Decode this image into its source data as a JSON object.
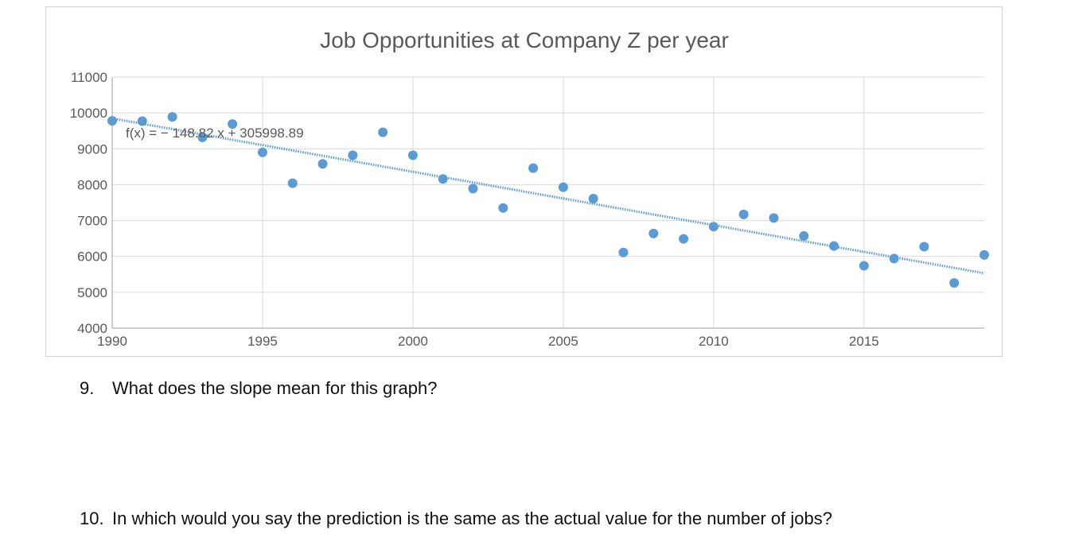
{
  "chart_data": {
    "type": "scatter",
    "title": "Job Opportunities at Company Z per year",
    "xlabel": "",
    "ylabel": "",
    "xlim": [
      1990,
      2019
    ],
    "ylim": [
      4000,
      11000
    ],
    "x_ticks": [
      1990,
      1995,
      2000,
      2005,
      2010,
      2015
    ],
    "y_ticks": [
      4000,
      5000,
      6000,
      7000,
      8000,
      9000,
      10000,
      11000
    ],
    "grid": true,
    "points": [
      {
        "x": 1990,
        "y": 9780
      },
      {
        "x": 1991,
        "y": 9770
      },
      {
        "x": 1992,
        "y": 9890
      },
      {
        "x": 1993,
        "y": 9320
      },
      {
        "x": 1994,
        "y": 9690
      },
      {
        "x": 1995,
        "y": 8900
      },
      {
        "x": 1996,
        "y": 8040
      },
      {
        "x": 1997,
        "y": 8580
      },
      {
        "x": 1998,
        "y": 8820
      },
      {
        "x": 1999,
        "y": 9460
      },
      {
        "x": 2000,
        "y": 8820
      },
      {
        "x": 2001,
        "y": 8160
      },
      {
        "x": 2002,
        "y": 7890
      },
      {
        "x": 2003,
        "y": 7350
      },
      {
        "x": 2004,
        "y": 8460
      },
      {
        "x": 2005,
        "y": 7930
      },
      {
        "x": 2006,
        "y": 7610
      },
      {
        "x": 2007,
        "y": 6110
      },
      {
        "x": 2008,
        "y": 6640
      },
      {
        "x": 2009,
        "y": 6490
      },
      {
        "x": 2010,
        "y": 6830
      },
      {
        "x": 2011,
        "y": 7170
      },
      {
        "x": 2012,
        "y": 7070
      },
      {
        "x": 2013,
        "y": 6570
      },
      {
        "x": 2014,
        "y": 6290
      },
      {
        "x": 2015,
        "y": 5740
      },
      {
        "x": 2016,
        "y": 5940
      },
      {
        "x": 2017,
        "y": 6270
      },
      {
        "x": 2018,
        "y": 5260
      },
      {
        "x": 2019,
        "y": 6040
      }
    ],
    "trendline": {
      "slope": -148.82,
      "intercept": 305998.89,
      "equation": "f(x) = − 148.82 x + 305998.89"
    },
    "colors": {
      "points": "#5b9bd5",
      "trendline": "#5b9bd5",
      "grid": "#d9d9d9",
      "axis": "#bfbfbf",
      "text": "#595959"
    }
  },
  "questions": [
    {
      "number": "9.",
      "text": "What does the slope mean for this graph?"
    },
    {
      "number": "10.",
      "text": "In which would you say the prediction is the same as the actual value for the number of jobs?"
    }
  ]
}
